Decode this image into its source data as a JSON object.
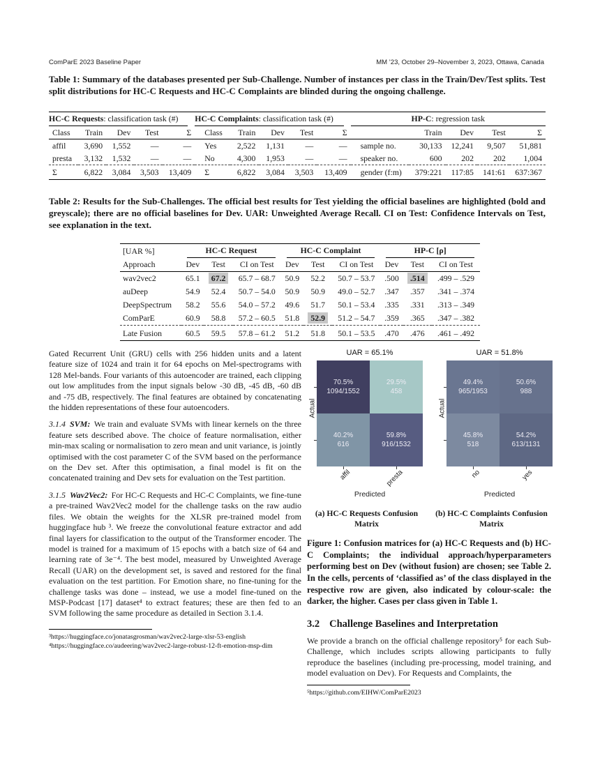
{
  "header": {
    "left": "ComParE 2023 Baseline Paper",
    "right": "MM ’23, October 29–November 3, 2023, Ottawa, Canada"
  },
  "table1": {
    "caption": "Table 1: Summary of the databases presented per Sub-Challenge. Number of instances per class in the Train/Dev/Test splits. Test split distributions for HC-C Requests and HC-C Complaints are blinded during the ongoing challenge.",
    "groups": [
      {
        "title_bold": "HC-C Requests",
        "title_rest": ": classification task (#)",
        "headers": [
          "Class",
          "Train",
          "Dev",
          "Test",
          "Σ"
        ],
        "rows": [
          [
            "affil",
            "3,690",
            "1,552",
            "––",
            "––"
          ],
          [
            "presta",
            "3,132",
            "1,532",
            "––",
            "––"
          ]
        ],
        "sum_row": [
          "Σ",
          "6,822",
          "3,084",
          "3,503",
          "13,409"
        ]
      },
      {
        "title_bold": "HC-C Complaints",
        "title_rest": ": classification task (#)",
        "headers": [
          "Class",
          "Train",
          "Dev",
          "Test",
          "Σ"
        ],
        "rows": [
          [
            "Yes",
            "2,522",
            "1,131",
            "––",
            "––"
          ],
          [
            "No",
            "4,300",
            "1,953",
            "––",
            "––"
          ]
        ],
        "sum_row": [
          "Σ",
          "6,822",
          "3,084",
          "3,503",
          "13,409"
        ]
      },
      {
        "title_bold": "HP-C",
        "title_rest": ": regression task",
        "headers": [
          "",
          "Train",
          "Dev",
          "Test",
          "Σ"
        ],
        "rows": [
          [
            "sample no.",
            "30,133",
            "12,241",
            "9,507",
            "51,881"
          ],
          [
            "speaker no.",
            "600",
            "202",
            "202",
            "1,004"
          ]
        ],
        "sum_row": [
          "gender (f:m)",
          "379:221",
          "117:85",
          "141:61",
          "637:367"
        ]
      }
    ]
  },
  "table2": {
    "caption": "Table 2: Results for the Sub-Challenges. The official best results for Test yielding the official baselines are highlighted (bold and greyscale); there are no official baselines for Dev. UAR: Unweighted Average Recall. CI on Test: Confidence Intervals on Test, see explanation in the text.",
    "corner": "[UAR %]",
    "groups": [
      "HC-C Request",
      "HC-C Complaint",
      "HP-C [ρ]"
    ],
    "approach_header": "Approach",
    "sub_headers": [
      "Dev",
      "Test",
      "CI on Test"
    ],
    "highlight_color": "#c7c7c7",
    "rows": [
      {
        "approach": "wav2vec2",
        "cells": [
          "65.1",
          "67.2",
          "65.7 – 68.7",
          "50.9",
          "52.2",
          "50.7 – 53.7",
          ".500",
          ".514",
          ".499 – .529"
        ],
        "highlight": [
          1,
          7
        ]
      },
      {
        "approach": "auDeep",
        "cells": [
          "54.9",
          "52.4",
          "50.7 – 54.0",
          "50.9",
          "50.9",
          "49.0 – 52.7",
          ".347",
          ".357",
          ".341 – .374"
        ],
        "highlight": []
      },
      {
        "approach": "DeepSpectrum",
        "cells": [
          "58.2",
          "55.6",
          "54.0 – 57.2",
          "49.6",
          "51.7",
          "50.1 – 53.4",
          ".335",
          ".331",
          ".313 – .349"
        ],
        "highlight": []
      },
      {
        "approach": "ComParE",
        "cells": [
          "60.9",
          "58.8",
          "57.2 – 60.5",
          "51.8",
          "52.9",
          "51.2 – 54.7",
          ".359",
          ".365",
          ".347 – .382"
        ],
        "highlight": [
          4
        ]
      }
    ],
    "fusion_row": {
      "approach": "Late Fusion",
      "cells": [
        "60.5",
        "59.5",
        "57.8 – 61.2",
        "51.2",
        "51.8",
        "50.1 – 53.5",
        ".470",
        ".476",
        ".461 – .492"
      ],
      "highlight": []
    }
  },
  "left_column": {
    "para1": "Gated Recurrent Unit (GRU) cells with 256 hidden units and a latent feature size of 1024 and train it for 64 epochs on Mel-spectrograms with 128 Mel-bands. Four variants of this autoencoder are trained, each clipping out low amplitudes from the input signals below -30 dB, -45 dB, -60 dB and -75 dB, respectively. The final features are obtained by concatenating the hidden representations of these four autoencoders.",
    "sec314": {
      "num": "3.1.4",
      "title": "SVM:",
      "text": "We train and evaluate SVMs with linear kernels on the three feature sets described above. The choice of feature normalisation, either min-max scaling or normalisation to zero mean and unit variance, is jointly optimised with the cost parameter C of the SVM based on the performance on the Dev set. After this optimisation, a final model is fit on the concatenated training and Dev sets for evaluation on the Test partition."
    },
    "sec315": {
      "num": "3.1.5",
      "title": "Wav2Vec2:",
      "text": "For HC-C Requests and HC-C Complaints, we fine-tune a pre-trained Wav2Vec2 model for the challenge tasks on the raw audio files. We obtain the weights for the XLSR pre-trained model from huggingface hub ³. We freeze the convolutional feature extractor and add final layers for classification to the output of the Transformer encoder. The model is trained for a maximum of 15 epochs with a batch size of 64 and learning rate of 3e⁻⁴. The best model, measured by Unweighted Average Recall (UAR) on the development set, is saved and restored for the final evaluation on the test partition. For Emotion share, no fine-tuning for the challenge tasks was done – instead, we use a model fine-tuned on the MSP-Podcast [17] dataset⁴ to extract features; these are then fed to an SVM following the same procedure as detailed in Section 3.1.4."
    },
    "footnotes": [
      "³https://huggingface.co/jonatasgrosman/wav2vec2-large-xlsr-53-english",
      "⁴https://huggingface.co/audeering/wav2vec2-large-robust-12-ft-emotion-msp-dim"
    ]
  },
  "figure": {
    "chart_data": [
      {
        "type": "heatmap",
        "title": "UAR = 65.1%",
        "xlabel": "Predicted",
        "ylabel": "Actual",
        "x_ticks": [
          "affil",
          "presta"
        ],
        "cells": [
          [
            {
              "pct": "70.5%",
              "count": "1094/1552",
              "color": "#403f60"
            },
            {
              "pct": "29.5%",
              "count": "458",
              "color": "#a6c8c6"
            }
          ],
          [
            {
              "pct": "40.2%",
              "count": "616",
              "color": "#8095a6"
            },
            {
              "pct": "59.8%",
              "count": "916/1532",
              "color": "#575c81"
            }
          ]
        ]
      },
      {
        "type": "heatmap",
        "title": "UAR = 51.8%",
        "xlabel": "Predicted",
        "ylabel": "Actual",
        "x_ticks": [
          "no",
          "yes"
        ],
        "cells": [
          [
            {
              "pct": "49.4%",
              "count": "965/1953",
              "color": "#6a7691"
            },
            {
              "pct": "50.6%",
              "count": "988",
              "color": "#67728d"
            }
          ],
          [
            {
              "pct": "45.8%",
              "count": "518",
              "color": "#7d8aa0"
            },
            {
              "pct": "54.2%",
              "count": "613/1131",
              "color": "#5e6884"
            }
          ]
        ]
      }
    ],
    "subcaptions": [
      "(a) HC-C Requests Confusion Matrix",
      "(b) HC-C Complaints Confusion Matrix"
    ],
    "caption": "Figure 1: Confusion matrices for (a) HC-C Requests and (b) HC-C Complaints; the individual approach/hyperparameters performing best on Dev (without fusion) are chosen; see Table 2. In the cells, percents of ‘classified as’ of the class displayed in the respective row are given, also indicated by colour-scale: the darker, the higher. Cases per class given in Table 1."
  },
  "section32": {
    "num": "3.2",
    "title": "Challenge Baselines and Interpretation",
    "text": "We provide a branch on the official challenge repository⁵ for each Sub-Challenge, which includes scripts allowing participants to fully reproduce the baselines (including pre-processing, model training, and model evaluation on Dev). For Requests and Complaints, the"
  },
  "right_footnotes": [
    "⁵https://github.com/EIHW/ComParE2023"
  ]
}
